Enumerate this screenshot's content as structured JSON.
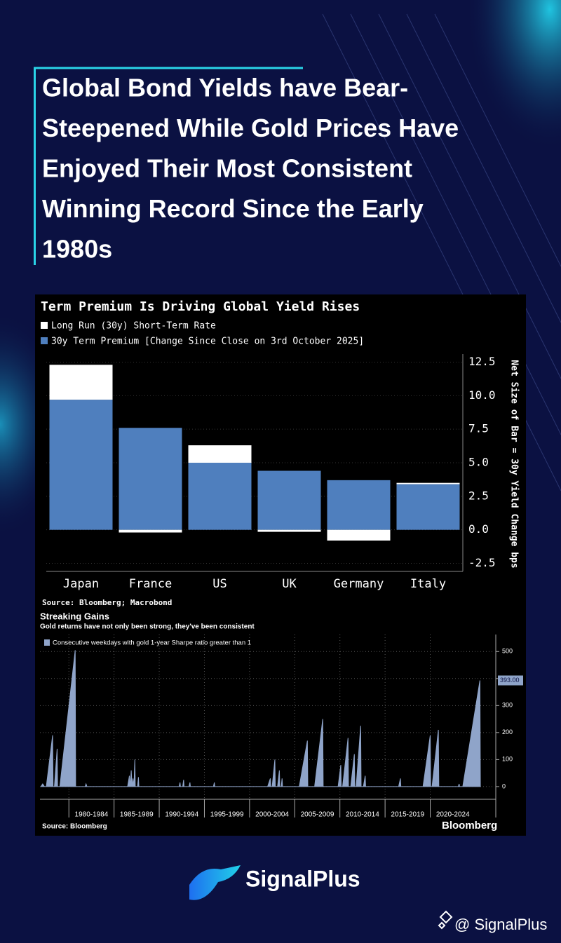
{
  "header": {
    "title_lines": [
      "Global Bond Yields have Bear-",
      "Steepened While Gold Prices Have",
      "Enjoyed Their Most Consistent",
      "Winning Record Since the Early",
      "1980s"
    ]
  },
  "chart_data": [
    {
      "type": "stacked-bar",
      "title": "Term Premium Is Driving Global Yield Rises",
      "categories": [
        "Japan",
        "France",
        "US",
        "UK",
        "Germany",
        "Italy"
      ],
      "series": [
        {
          "name": "Long Run (30y) Short-Term Rate",
          "color": "#ffffff",
          "values": [
            2.6,
            -0.2,
            1.3,
            -0.15,
            -0.8,
            0.1
          ]
        },
        {
          "name": "30y Term Premium [Change Since Close on 3rd October 2025]",
          "color": "#4f7fbe",
          "values": [
            9.7,
            7.6,
            5.0,
            4.4,
            3.7,
            3.4
          ]
        }
      ],
      "ylabel": "Net Size of Bar = 30y Yield Change bps",
      "ylim": [
        -3.1,
        13.1
      ],
      "yticks": [
        -2.5,
        {
          "value": 0,
          "label": "0.0"
        },
        2.5,
        {
          "value": 5,
          "label": "5.0"
        },
        7.5,
        {
          "value": 10,
          "label": "10.0"
        },
        12.5
      ],
      "grid": true,
      "source": "Source: Bloomberg; Macrobond"
    },
    {
      "type": "area",
      "title": "Streaking Gains",
      "subtitle": "Gold returns have not only been strong, they've been consistent",
      "x": [
        1976.9,
        1977.1,
        1977.3,
        1977.5,
        1978.2,
        1978.25,
        1978.4,
        1978.7,
        1978.75,
        1979.0,
        1980.7,
        1980.75,
        1981.8,
        1981.9,
        1982.0,
        1986.5,
        1986.7,
        1986.8,
        1986.9,
        1987.0,
        1987.1,
        1987.2,
        1987.3,
        1987.35,
        1987.6,
        1987.7,
        1987.75,
        1992.2,
        1992.3,
        1992.35,
        1992.6,
        1992.7,
        1992.75,
        1993.3,
        1993.4,
        1993.45,
        1996.0,
        1996.1,
        1996.15,
        2002.0,
        2002.3,
        2002.35,
        2002.5,
        2002.8,
        2002.85,
        2003.1,
        2003.3,
        2003.35,
        2003.5,
        2003.6,
        2003.65,
        2005.5,
        2006.4,
        2006.45,
        2007.2,
        2008.1,
        2008.15,
        2009.8,
        2010.1,
        2010.15,
        2010.3,
        2010.9,
        2010.95,
        2011.2,
        2011.6,
        2011.65,
        2011.8,
        2012.3,
        2012.35,
        2012.6,
        2012.8,
        2012.85,
        2016.5,
        2016.7,
        2016.75,
        2019.2,
        2020.0,
        2020.05,
        2020.2,
        2020.9,
        2020.95,
        2023.1,
        2023.2,
        2023.25,
        2023.6,
        2025.5,
        2025.55
      ],
      "series": [
        {
          "name": "Consecutive weekdays with gold 1-year Sharpe ratio greater than 1",
          "color": "#8fa4c9",
          "values": [
            0,
            10,
            0,
            0,
            190,
            0,
            0,
            140,
            0,
            0,
            505,
            0,
            0,
            10,
            0,
            0,
            40,
            0,
            60,
            0,
            30,
            0,
            100,
            0,
            0,
            35,
            0,
            0,
            15,
            0,
            0,
            25,
            0,
            0,
            15,
            0,
            0,
            15,
            0,
            0,
            30,
            0,
            0,
            100,
            0,
            0,
            60,
            0,
            0,
            30,
            0,
            0,
            170,
            0,
            0,
            250,
            0,
            0,
            80,
            0,
            0,
            180,
            0,
            0,
            120,
            0,
            0,
            225,
            0,
            0,
            40,
            0,
            0,
            30,
            0,
            0,
            190,
            0,
            0,
            210,
            0,
            0,
            10,
            0,
            0,
            393,
            0
          ]
        }
      ],
      "annotations": [
        {
          "x": 2025.5,
          "value": 393,
          "label": "393.00"
        }
      ],
      "xlim": [
        1976.8,
        2027.1
      ],
      "xticks": [
        {
          "value": 1980,
          "label": "1980-1984"
        },
        {
          "value": 1985,
          "label": "1985-1989"
        },
        {
          "value": 1990,
          "label": "1990-1994"
        },
        {
          "value": 1995,
          "label": "1995-1999"
        },
        {
          "value": 2000,
          "label": "2000-2004"
        },
        {
          "value": 2005,
          "label": "2005-2009"
        },
        {
          "value": 2010,
          "label": "2010-2014"
        },
        {
          "value": 2015,
          "label": "2015-2019"
        },
        {
          "value": 2020,
          "label": "2020-2024"
        }
      ],
      "ylim": [
        -47,
        563
      ],
      "yticks": [
        0,
        100,
        200,
        300,
        400,
        500
      ],
      "grid": true,
      "source": "Source: Bloomberg",
      "brand": "Bloomberg"
    }
  ],
  "footer": {
    "logo": "SignalPlus",
    "handle": "@ SignalPlus"
  }
}
